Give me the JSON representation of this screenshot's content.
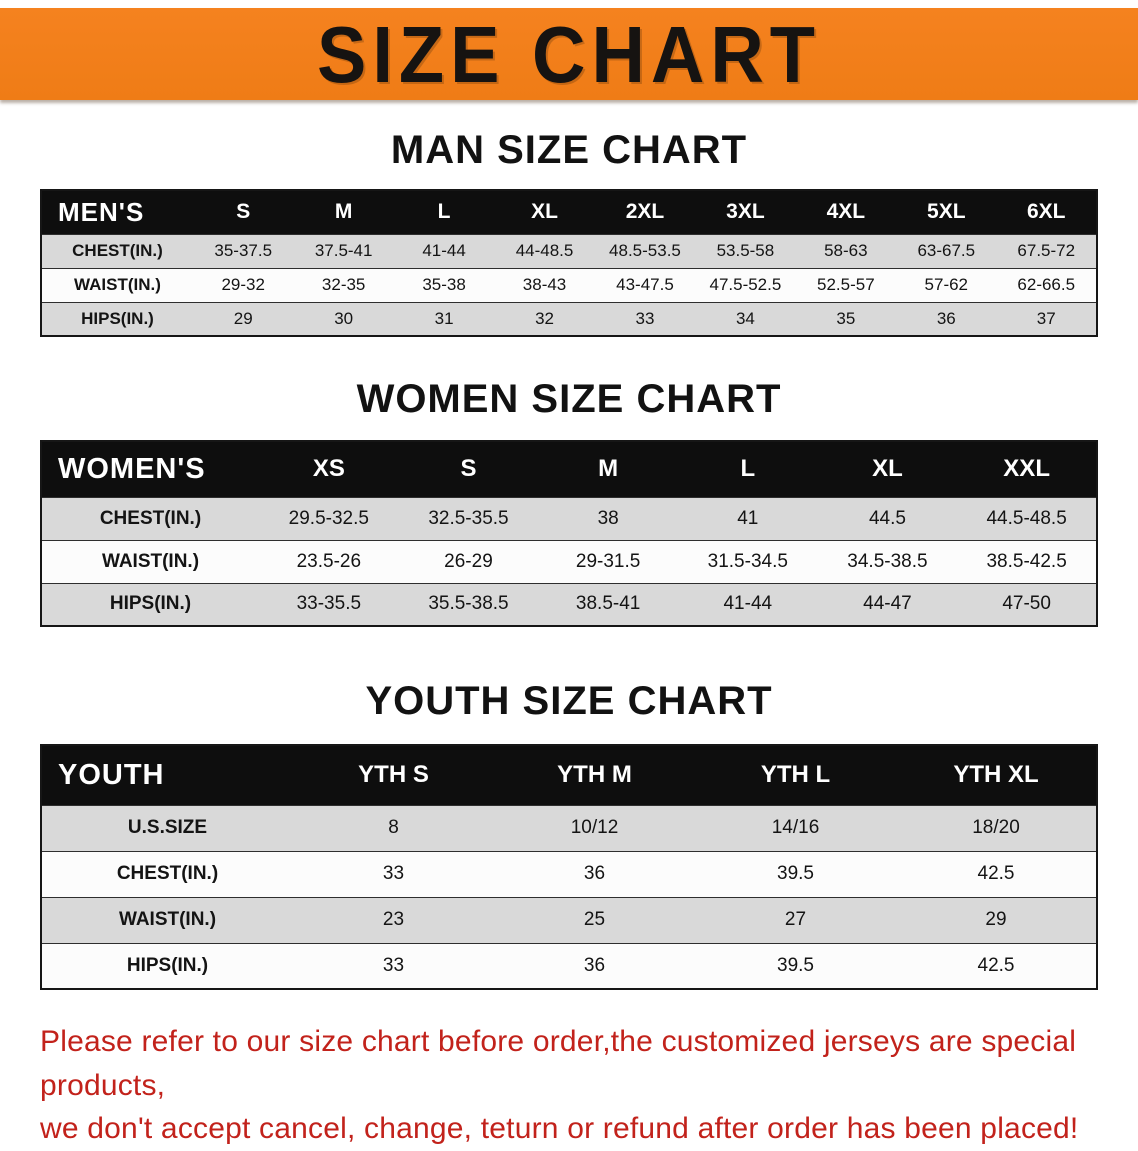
{
  "banner": {
    "title": "SIZE CHART"
  },
  "colors": {
    "banner_bg": "#f5821f",
    "header_bg": "#0e0e0e",
    "row_shade": "#d9d9d9",
    "footer_text": "#c2221b"
  },
  "headings": {
    "men": "MAN SIZE CHART",
    "women": "WOMEN SIZE CHART",
    "youth": "YOUTH SIZE CHART"
  },
  "tables": {
    "men": {
      "corner_label": "MEN'S",
      "columns": [
        "S",
        "M",
        "L",
        "XL",
        "2XL",
        "3XL",
        "4XL",
        "5XL",
        "6XL"
      ],
      "rows": [
        {
          "label": "CHEST(IN.)",
          "values": [
            "35-37.5",
            "37.5-41",
            "41-44",
            "44-48.5",
            "48.5-53.5",
            "53.5-58",
            "58-63",
            "63-67.5",
            "67.5-72"
          ]
        },
        {
          "label": "WAIST(IN.)",
          "values": [
            "29-32",
            "32-35",
            "35-38",
            "38-43",
            "43-47.5",
            "47.5-52.5",
            "52.5-57",
            "57-62",
            "62-66.5"
          ]
        },
        {
          "label": "HIPS(IN.)",
          "values": [
            "29",
            "30",
            "31",
            "32",
            "33",
            "34",
            "35",
            "36",
            "37"
          ]
        }
      ]
    },
    "women": {
      "corner_label": "WOMEN'S",
      "columns": [
        "XS",
        "S",
        "M",
        "L",
        "XL",
        "XXL"
      ],
      "rows": [
        {
          "label": "CHEST(IN.)",
          "values": [
            "29.5-32.5",
            "32.5-35.5",
            "38",
            "41",
            "44.5",
            "44.5-48.5"
          ]
        },
        {
          "label": "WAIST(IN.)",
          "values": [
            "23.5-26",
            "26-29",
            "29-31.5",
            "31.5-34.5",
            "34.5-38.5",
            "38.5-42.5"
          ]
        },
        {
          "label": "HIPS(IN.)",
          "values": [
            "33-35.5",
            "35.5-38.5",
            "38.5-41",
            "41-44",
            "44-47",
            "47-50"
          ]
        }
      ]
    },
    "youth": {
      "corner_label": "YOUTH",
      "columns": [
        "YTH S",
        "YTH M",
        "YTH L",
        "YTH XL"
      ],
      "rows": [
        {
          "label": "U.S.SIZE",
          "values": [
            "8",
            "10/12",
            "14/16",
            "18/20"
          ]
        },
        {
          "label": "CHEST(IN.)",
          "values": [
            "33",
            "36",
            "39.5",
            "42.5"
          ]
        },
        {
          "label": "WAIST(IN.)",
          "values": [
            "23",
            "25",
            "27",
            "29"
          ]
        },
        {
          "label": "HIPS(IN.)",
          "values": [
            "33",
            "36",
            "39.5",
            "42.5"
          ]
        }
      ]
    }
  },
  "footer": {
    "line1": "Please refer to our size chart before order,the customized jerseys are special products,",
    "line2": "we don't accept cancel, change, teturn or refund after order has been placed!"
  }
}
